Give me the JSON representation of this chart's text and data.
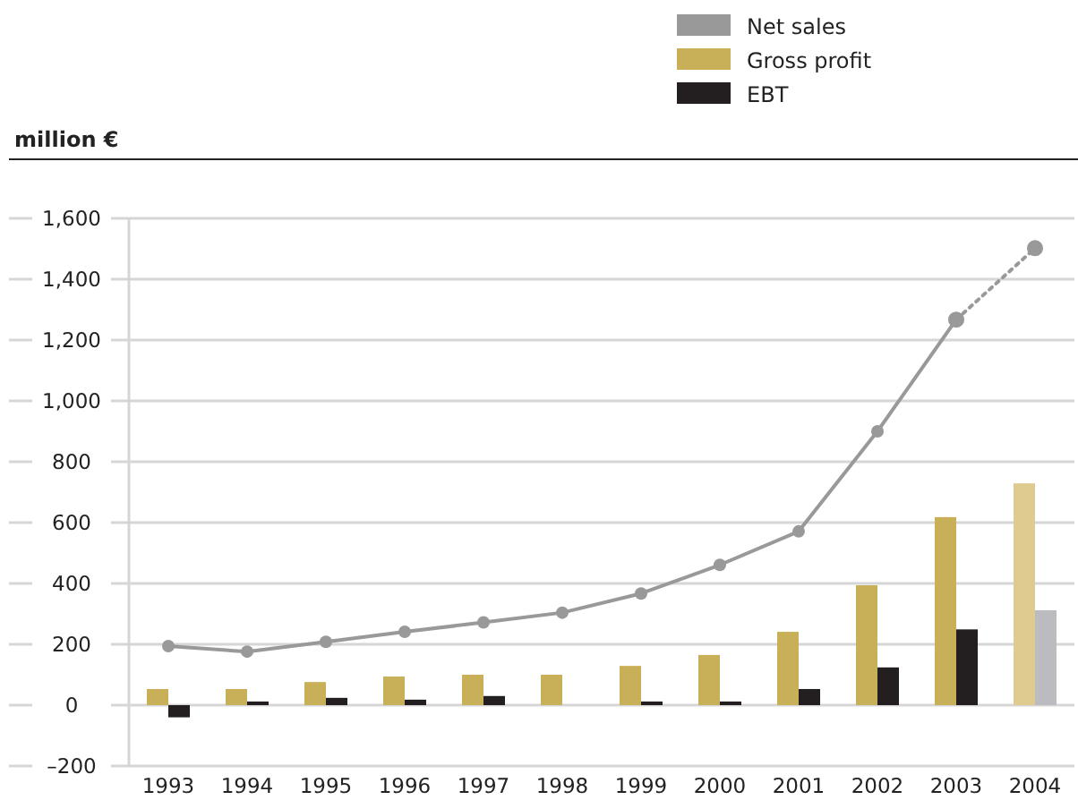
{
  "chart_data": {
    "type": "bar",
    "ylabel": "million €",
    "categories": [
      "1993",
      "1994",
      "1995",
      "1996",
      "1997",
      "1998",
      "1999",
      "2000",
      "2001",
      "2002",
      "2003",
      "2004"
    ],
    "series": [
      {
        "name": "Net sales",
        "type": "line",
        "color": "#999999",
        "values": [
          194,
          176,
          208,
          241,
          272,
          304,
          367,
          461,
          571,
          900,
          1267,
          null
        ]
      },
      {
        "type": "line",
        "color": "#999999",
        "line_style": "dotted",
        "values": [
          null,
          null,
          null,
          null,
          null,
          null,
          null,
          null,
          null,
          null,
          1267,
          1502
        ]
      },
      {
        "name": "Gross profit",
        "color": "#c8b058",
        "colors": [
          "#c8b058",
          "#c8b058",
          "#c8b058",
          "#c8b058",
          "#c8b058",
          "#c8b058",
          "#c8b058",
          "#c8b058",
          "#c8b058",
          "#c8b058",
          "#c8b058",
          "#dfcb90"
        ],
        "values": [
          53,
          53,
          76,
          94,
          100,
          100,
          129,
          165,
          241,
          394,
          618,
          729
        ]
      },
      {
        "name": "EBT",
        "color": "#231f20",
        "colors": [
          "#231f20",
          "#231f20",
          "#231f20",
          "#231f20",
          "#231f20",
          "#231f20",
          "#231f20",
          "#231f20",
          "#231f20",
          "#231f20",
          "#231f20",
          "#bcbcc0"
        ],
        "values": [
          -40,
          12,
          24,
          18,
          30,
          0,
          12,
          12,
          53,
          124,
          249,
          312
        ]
      }
    ],
    "ylim": [
      -200,
      1600
    ],
    "yticks": [
      {
        "value": -200,
        "label": "–200"
      },
      0,
      200,
      400,
      600,
      800,
      {
        "value": 1000,
        "label": "1,000"
      },
      {
        "value": 1200,
        "label": "1,200"
      },
      {
        "value": 1400,
        "label": "1,400"
      },
      {
        "value": 1600,
        "label": "1,600"
      }
    ],
    "grid": "y",
    "legend": "top right",
    "marker": "circle"
  }
}
